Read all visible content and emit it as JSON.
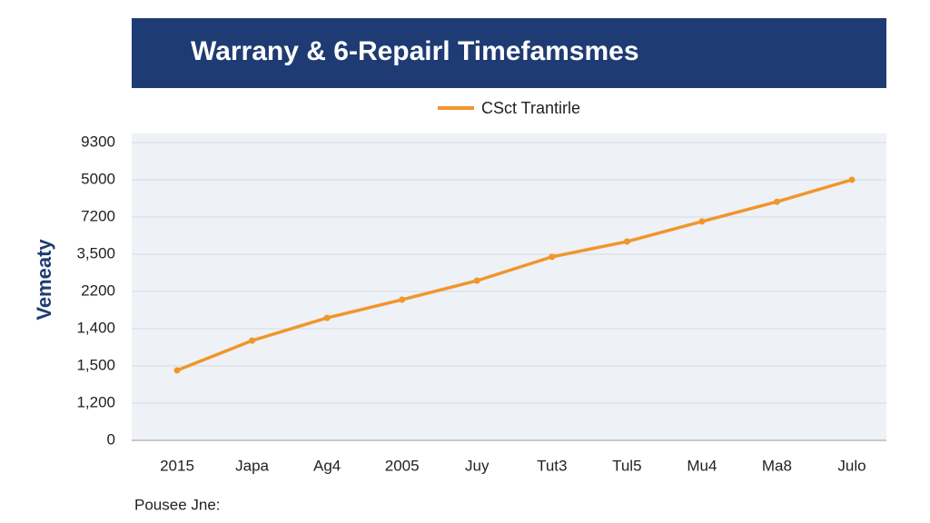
{
  "chart_data": {
    "type": "line",
    "title": "Warrany & 6-Repairl Timefamsmes",
    "legend": "CSct Trantirle",
    "y_label": "Vemeaty",
    "footer": "Pousee Jne:",
    "categories": [
      "2015",
      "Japa",
      "Ag4",
      "2005",
      "Juy",
      "Tut3",
      "Tul5",
      "Mu4",
      "Ma8",
      "Julo"
    ],
    "series": [
      {
        "name": "CSct Trantirle",
        "color": "#f0962a",
        "values": [
          1.88,
          2.68,
          3.29,
          3.78,
          4.29,
          4.93,
          5.34,
          5.88,
          6.41,
          7.0
        ]
      }
    ],
    "ylim": [
      0,
      8
    ],
    "yticks": [
      0,
      {
        "value": 1,
        "label": "1,200"
      },
      {
        "value": 2,
        "label": "1,500"
      },
      {
        "value": 3,
        "label": "1,400"
      },
      {
        "value": 4,
        "label": "2200"
      },
      {
        "value": 5,
        "label": "3,500"
      },
      {
        "value": 6,
        "label": "7200"
      },
      {
        "value": 7,
        "label": "5000"
      },
      {
        "value": 8,
        "label": "9300"
      }
    ],
    "grid": true
  }
}
